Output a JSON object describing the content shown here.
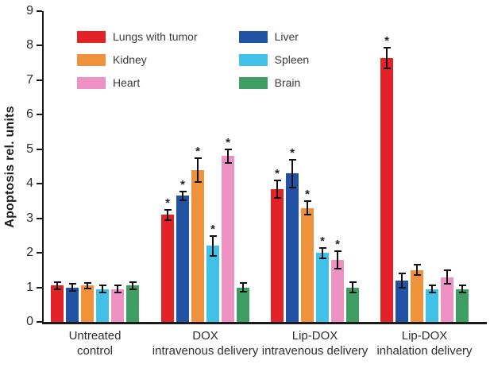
{
  "chart_data": {
    "type": "bar",
    "title": "",
    "xlabel": "",
    "ylabel": "Apoptosis rel. units",
    "ylim": [
      0,
      9
    ],
    "yticks": [
      0,
      1,
      2,
      3,
      4,
      5,
      6,
      7,
      8,
      9
    ],
    "grid": false,
    "legend_position": "top-left",
    "significance_marker": "*",
    "categories": [
      {
        "line1": "Untreated",
        "line2": "control"
      },
      {
        "line1": "DOX",
        "line2": "intravenous delivery"
      },
      {
        "line1": "Lip-DOX",
        "line2": "intravenous delivery"
      },
      {
        "line1": "Lip-DOX",
        "line2": "inhalation delivery"
      }
    ],
    "series": [
      {
        "name": "Lungs with tumor",
        "color": "#e32227",
        "values": [
          1.05,
          3.1,
          3.85,
          7.65
        ],
        "errors": [
          0.1,
          0.15,
          0.25,
          0.3
        ],
        "significant": [
          false,
          true,
          true,
          true
        ]
      },
      {
        "name": "Liver",
        "color": "#2252a4",
        "values": [
          1.0,
          3.65,
          4.3,
          1.2
        ],
        "errors": [
          0.1,
          0.12,
          0.4,
          0.2
        ],
        "significant": [
          false,
          true,
          true,
          false
        ]
      },
      {
        "name": "Kidney",
        "color": "#f0913c",
        "values": [
          1.05,
          4.4,
          3.3,
          1.5
        ],
        "errors": [
          0.08,
          0.35,
          0.2,
          0.15
        ],
        "significant": [
          false,
          true,
          true,
          false
        ]
      },
      {
        "name": "Spleen",
        "color": "#41c0e8",
        "values": [
          0.95,
          2.2,
          2.0,
          0.95
        ],
        "errors": [
          0.1,
          0.28,
          0.15,
          0.1
        ],
        "significant": [
          false,
          true,
          true,
          false
        ]
      },
      {
        "name": "Heart",
        "color": "#ee92c4",
        "values": [
          0.95,
          4.8,
          1.8,
          1.3
        ],
        "errors": [
          0.1,
          0.2,
          0.25,
          0.2
        ],
        "significant": [
          false,
          true,
          true,
          false
        ]
      },
      {
        "name": "Brain",
        "color": "#3f9e63",
        "values": [
          1.05,
          1.0,
          1.0,
          0.95
        ],
        "errors": [
          0.1,
          0.12,
          0.15,
          0.1
        ],
        "significant": [
          false,
          false,
          false,
          false
        ]
      }
    ],
    "legend_columns": [
      [
        "Lungs with tumor",
        "Kidney",
        "Heart"
      ],
      [
        "Liver",
        "Spleen",
        "Brain"
      ]
    ],
    "axis_color": "#1a1a1a",
    "error_bar_color": "#111111"
  }
}
